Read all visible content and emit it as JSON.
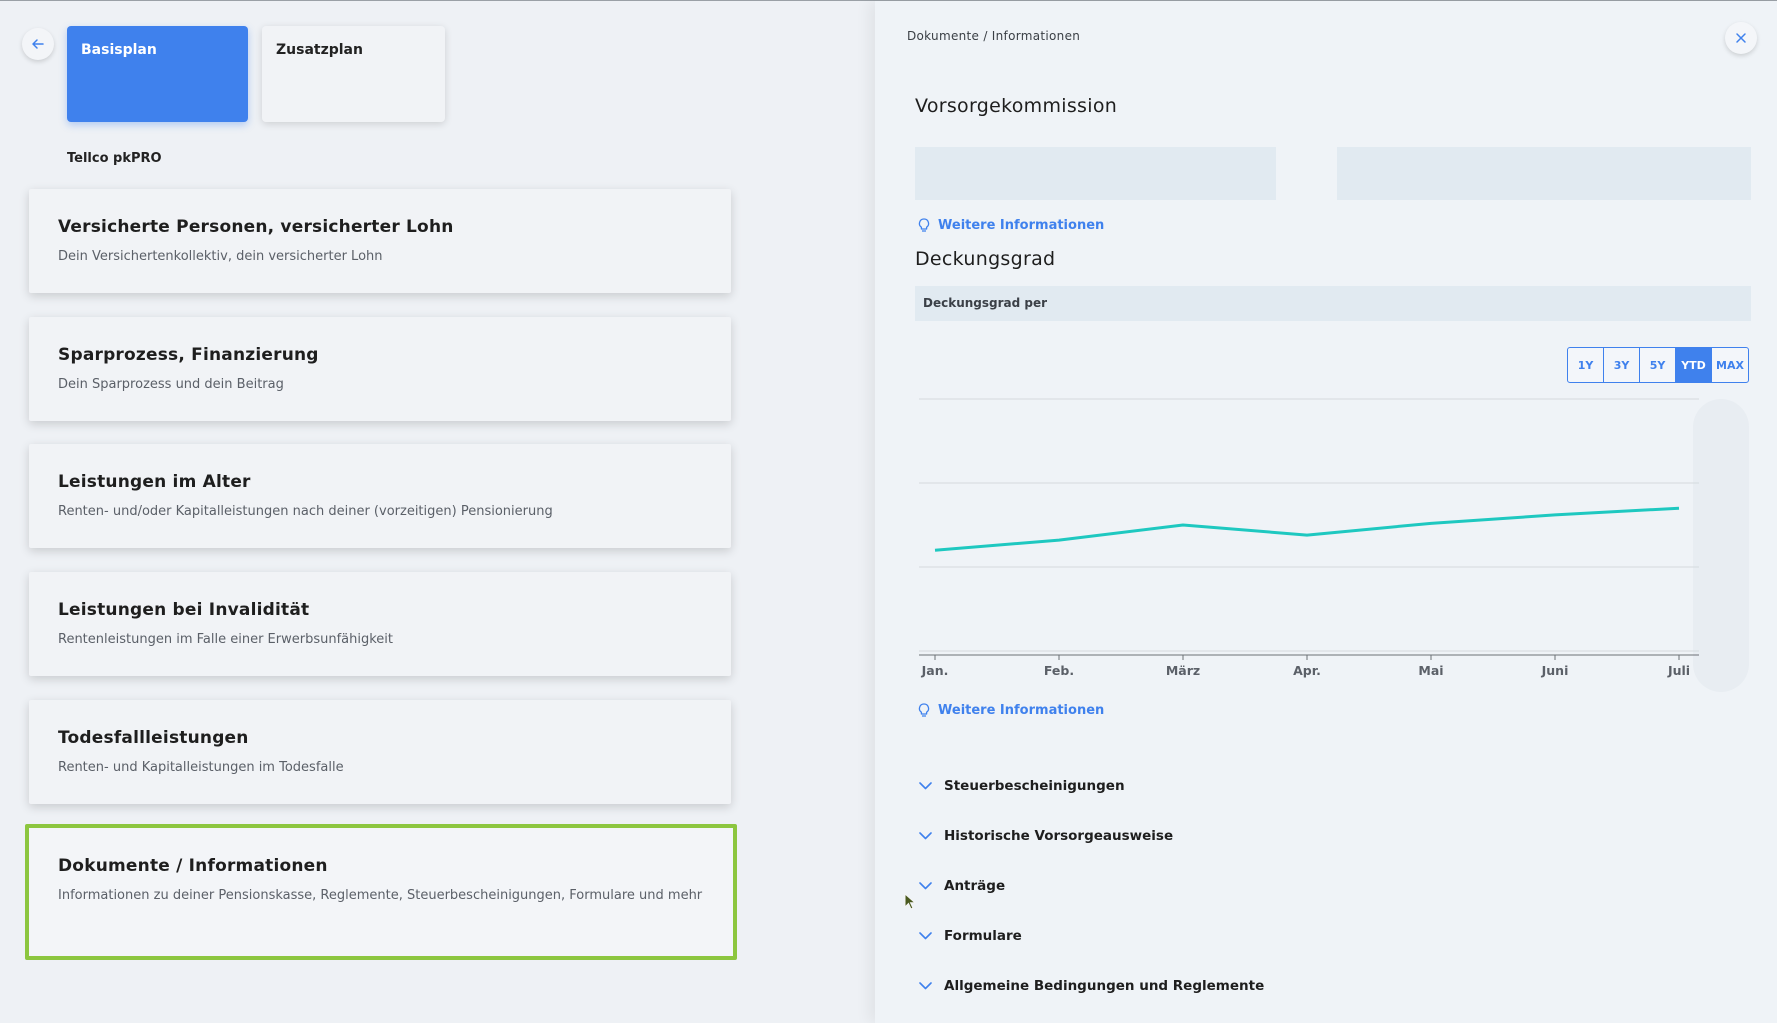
{
  "left": {
    "back_icon": "arrow-left-icon",
    "plans": [
      {
        "label": "Basisplan",
        "active": true
      },
      {
        "label": "Zusatzplan",
        "active": false
      }
    ],
    "provider": "Tellco pkPRO",
    "menu": [
      {
        "title": "Versicherte Personen, versicherter Lohn",
        "subtitle": "Dein Versichertenkollektiv, dein versicherter Lohn"
      },
      {
        "title": "Sparprozess, Finanzierung",
        "subtitle": "Dein Sparprozess und dein Beitrag"
      },
      {
        "title": "Leistungen im Alter",
        "subtitle": "Renten- und/oder Kapitalleistungen nach deiner (vorzeitigen) Pensionierung"
      },
      {
        "title": "Leistungen bei Invalidität",
        "subtitle": "Rentenleistungen im Falle einer Erwerbsunfähigkeit"
      },
      {
        "title": "Todesfallleistungen",
        "subtitle": "Renten- und Kapitalleistungen im Todesfalle"
      },
      {
        "title": "Dokumente / Informationen",
        "subtitle": "Informationen zu deiner Pensionskasse, Reglemente, Steuerbescheinigungen, Formulare und mehr",
        "selected": true
      }
    ]
  },
  "right": {
    "breadcrumb": "Dokumente / Informationen",
    "close_icon": "close-icon",
    "vorsorge_title": "Vorsorgekommission",
    "more_info_label": "Weitere Informationen",
    "deckung_title": "Deckungsgrad",
    "deckung_per": "Deckungsgrad per",
    "ranges": [
      "1Y",
      "3Y",
      "5Y",
      "YTD",
      "MAX"
    ],
    "active_range": "YTD",
    "accordion": [
      "Steuerbescheinigungen",
      "Historische Vorsorgeausweise",
      "Anträge",
      "Formulare",
      "Allgemeine Bedingungen und Reglemente"
    ],
    "colors": {
      "accent": "#3f81ed",
      "line": "#1ec8c0",
      "selected_border": "#8cc63f"
    }
  },
  "chart_data": {
    "type": "line",
    "categories": [
      "Jan.",
      "Feb.",
      "März",
      "Apr.",
      "Mai",
      "Juni",
      "Juli"
    ],
    "series": [
      {
        "values": [
          1.0,
          1.6,
          2.5,
          1.9,
          2.6,
          3.1,
          3.5
        ]
      }
    ],
    "ylim": [
      -5,
      10
    ],
    "grid": true,
    "title": "",
    "xlabel": "",
    "ylabel": ""
  }
}
